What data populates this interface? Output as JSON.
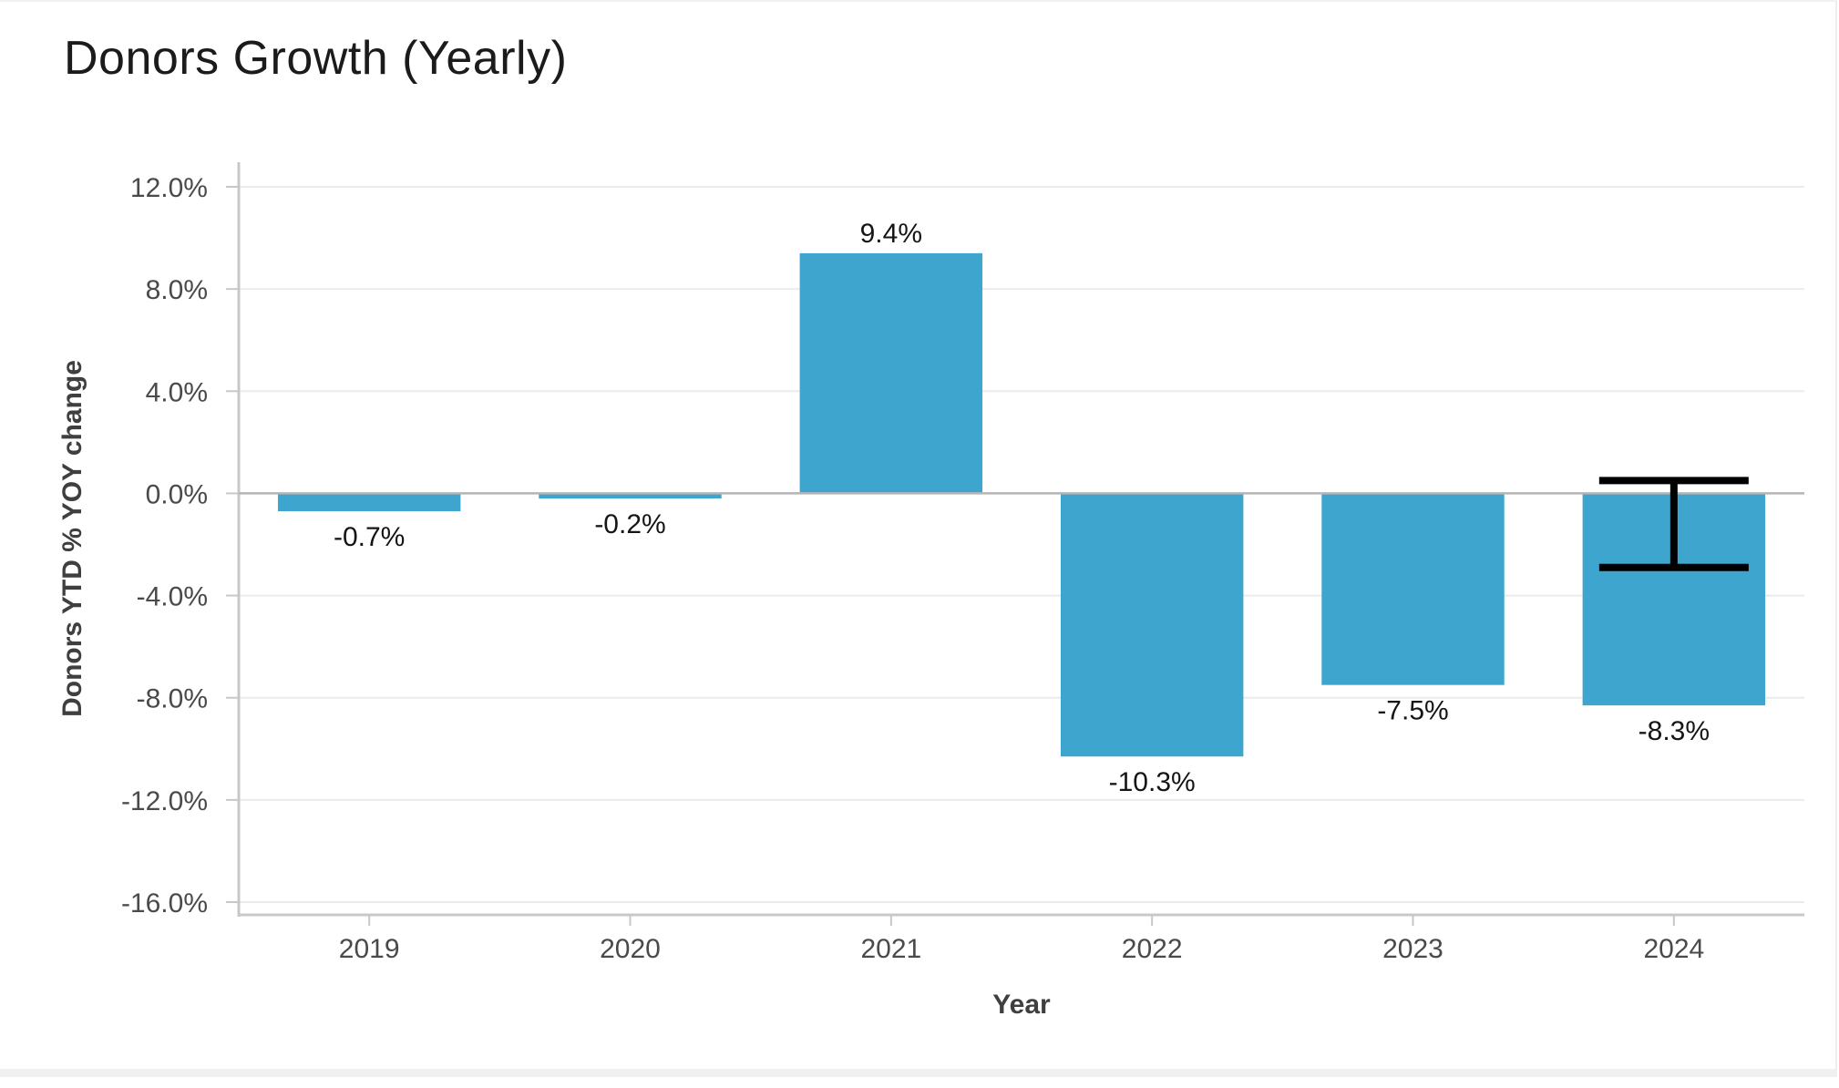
{
  "card": {
    "title": "Donors Growth (Yearly)"
  },
  "chart_data": {
    "type": "bar",
    "title": "Donors Growth (Yearly)",
    "xlabel": "Year",
    "ylabel": "Donors YTD % YOY change",
    "categories": [
      "2019",
      "2020",
      "2021",
      "2022",
      "2023",
      "2024"
    ],
    "values": [
      -0.7,
      -0.2,
      9.4,
      -10.3,
      -7.5,
      -8.3
    ],
    "data_labels": [
      "-0.7%",
      "-0.2%",
      "9.4%",
      "-10.3%",
      "-7.5%",
      "-8.3%"
    ],
    "ylim": [
      -16,
      12
    ],
    "yticks": [
      12,
      8,
      4,
      0,
      -4,
      -8,
      -12,
      -16
    ],
    "ytick_labels": [
      "12.0%",
      "8.0%",
      "4.0%",
      "0.0%",
      "-4.0%",
      "-8.0%",
      "-12.0%",
      "-16.0%"
    ],
    "error_bar": {
      "category": "2024",
      "upper": 0.5,
      "lower": -2.9
    },
    "grid": true,
    "legend": "none",
    "colors": {
      "bar": "#3ea6ce",
      "grid": "#ebebeb",
      "axis": "#c8c8c8",
      "zero_line": "#b5b5b5",
      "error_bar": "#000000"
    }
  }
}
